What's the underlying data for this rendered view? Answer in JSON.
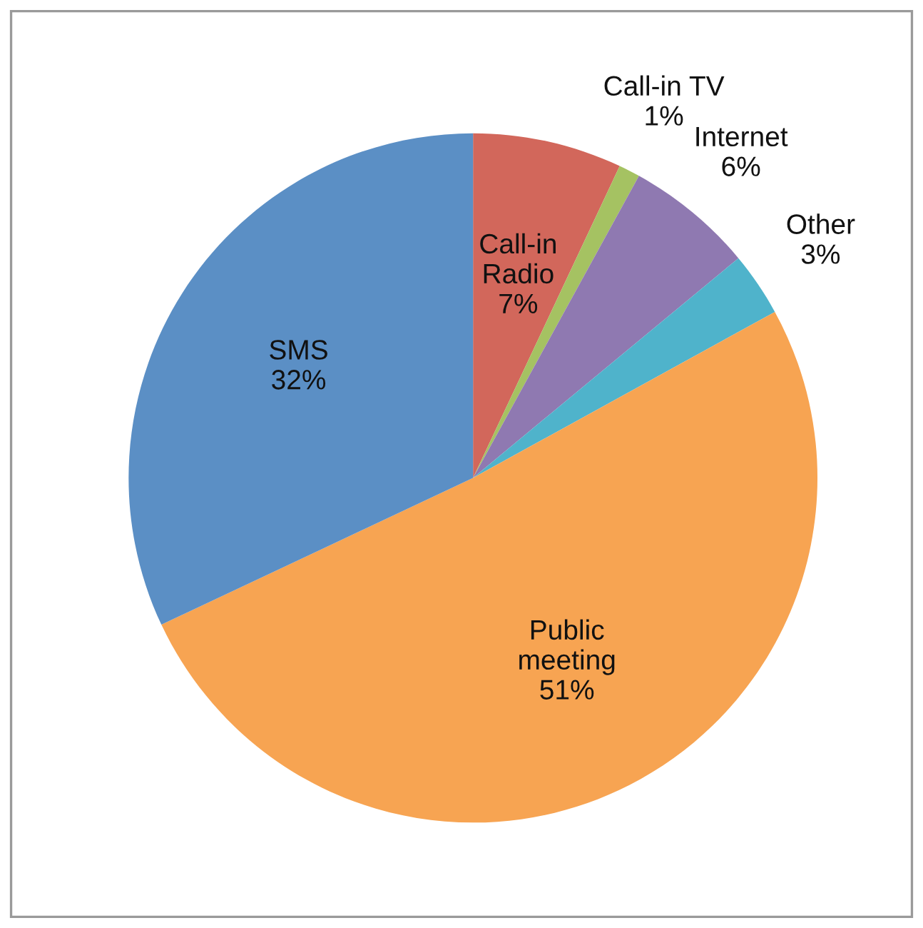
{
  "chart_data": {
    "type": "pie",
    "categories": [
      "Call-in\nRadio",
      "Call-in TV",
      "Internet",
      "Other",
      "Public\nmeeting",
      "SMS"
    ],
    "values": [
      7,
      1,
      6,
      3,
      51,
      32
    ],
    "value_labels": [
      "7%",
      "1%",
      "6%",
      "3%",
      "51%",
      "32%"
    ],
    "colors": [
      "#d2675b",
      "#a5c262",
      "#8f79b1",
      "#4fb3cb",
      "#f7a452",
      "#5b8fc5"
    ],
    "legend": false
  }
}
